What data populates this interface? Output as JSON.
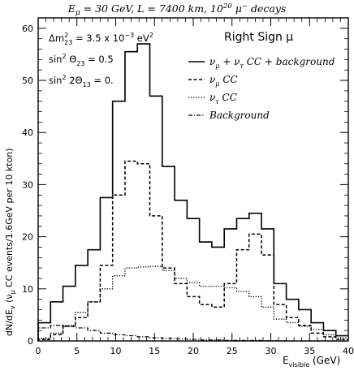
{
  "chart_data": {
    "type": "line",
    "step": true,
    "title": "E_μ = 30 GeV, L = 7400 km, 10^20 μ⁻ decays",
    "title_parts": {
      "e_base": "E",
      "e_sub": "μ",
      "e_value": " = 30 GeV, L = 7400 km, 10",
      "e_pow": "20",
      "mu": " μ",
      "mu_sup": "−",
      "decays": " decays"
    },
    "panel_label": "Right Sign μ",
    "params": {
      "dm": {
        "base": "Δm",
        "sup": "2",
        "sub": "23",
        "value": " = 3.5 x 10",
        "pow": "−3",
        "unit": " eV",
        "unit_sup": "2"
      },
      "s23": {
        "base": "sin",
        "sup": "2",
        "theta": " Θ",
        "sub": "23",
        "value": " = 0.5"
      },
      "s13": {
        "base": "sin",
        "sup": "2",
        "theta": " 2Θ",
        "sub": "13",
        "value": " = 0."
      }
    },
    "xlabel": {
      "base": "E",
      "sub": "visible",
      "unit": " (GeV)"
    },
    "ylabel": "dN/dE_v (ν_μ CC events/1.6GeV per 10 kton)",
    "ylabel_parts": {
      "a": "dN/dE",
      "a_sub": "v",
      "b": " (ν",
      "b_sub": "μ",
      "c": " CC events/1.6GeV per 10 kton)"
    },
    "xlim": [
      0,
      40
    ],
    "ylim": [
      0,
      62
    ],
    "xticks": [
      0,
      5,
      10,
      15,
      20,
      25,
      30,
      35,
      40
    ],
    "yticks": [
      0,
      10,
      20,
      30,
      40,
      50,
      60
    ],
    "bin_edges": [
      0,
      1.6,
      3.2,
      4.8,
      6.4,
      8.0,
      9.6,
      11.2,
      12.8,
      14.4,
      16.0,
      17.6,
      19.2,
      20.8,
      22.4,
      24.0,
      25.6,
      27.2,
      28.8,
      30.4,
      32.0,
      33.6,
      35.2,
      36.8,
      38.4,
      40.0
    ],
    "series": [
      {
        "name_parts": {
          "a": "ν",
          "a_sub": "μ",
          "b": " + ν",
          "b_sub": "τ",
          "c": " CC + background"
        },
        "name": "ν_μ + ν_τ CC + background",
        "style": "solid",
        "color": "#000000",
        "values": [
          3.5,
          7.5,
          10.5,
          14.5,
          17.5,
          27.5,
          46,
          55.5,
          57,
          47,
          33.5,
          27,
          23.5,
          19,
          18,
          21.5,
          23.5,
          24.5,
          21.5,
          11,
          8,
          6,
          3.5,
          2,
          1
        ]
      },
      {
        "name_parts": {
          "a": "ν",
          "a_sub": "μ",
          "b": " CC"
        },
        "name": "ν_μ CC",
        "style": "dash",
        "color": "#000000",
        "values": [
          0.3,
          1.2,
          2.8,
          4.5,
          7.5,
          14.5,
          28,
          34.5,
          34,
          24,
          14,
          11,
          8.5,
          7,
          6.5,
          11,
          17.5,
          20.5,
          16.5,
          7,
          4.5,
          3,
          1.5,
          0.8,
          0.3
        ]
      },
      {
        "name_parts": {
          "a": "ν",
          "a_sub": "τ",
          "b": " CC"
        },
        "name": "ν_τ CC",
        "style": "dot",
        "color": "#000000",
        "values": [
          0.5,
          1.5,
          3,
          5.5,
          7.5,
          10,
          12.5,
          14,
          14.2,
          14.3,
          13.5,
          12,
          11.2,
          10.5,
          10.5,
          10.2,
          9.5,
          8.5,
          6.5,
          4.2,
          3.5,
          2.8,
          2.2,
          1.2,
          0.6
        ]
      },
      {
        "name_parts": {
          "a": "Background"
        },
        "name": "Background",
        "style": "dashdot",
        "color": "#000000",
        "values": [
          2.5,
          3,
          2.8,
          2.5,
          2,
          1.5,
          1.2,
          1,
          0.8,
          0.6,
          0.5,
          0.4,
          0.3,
          0.2,
          0.2,
          0.1,
          0.1,
          0.1,
          0.05,
          0.05,
          0,
          0,
          0,
          0,
          0
        ]
      }
    ],
    "legend": "top-right",
    "grid": false
  }
}
